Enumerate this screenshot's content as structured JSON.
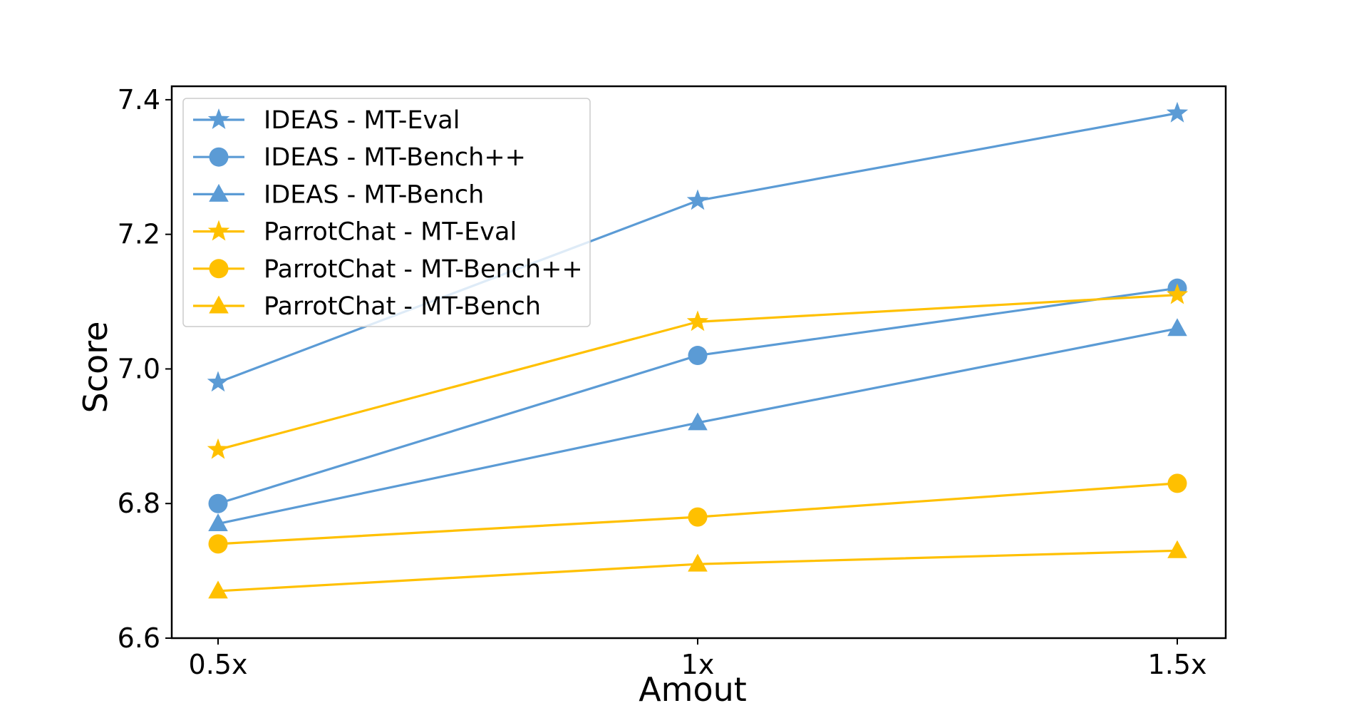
{
  "chart_data": {
    "type": "line",
    "title": "",
    "xlabel": "Amout",
    "ylabel": "Score",
    "categories": [
      "0.5x",
      "1x",
      "1.5x"
    ],
    "ylim": [
      6.6,
      7.42
    ],
    "yticks": [
      6.6,
      6.8,
      7.0,
      7.2,
      7.4
    ],
    "ytick_labels": [
      "6.6",
      "6.8",
      "7.0",
      "7.2",
      "7.4"
    ],
    "grid": false,
    "legend_position": "top-left",
    "series": [
      {
        "name": "IDEAS - MT-Eval",
        "values": [
          6.98,
          7.25,
          7.38
        ],
        "color": "#5B9BD5",
        "marker": "star"
      },
      {
        "name": "IDEAS - MT-Bench++",
        "values": [
          6.8,
          7.02,
          7.12
        ],
        "color": "#5B9BD5",
        "marker": "circle"
      },
      {
        "name": "IDEAS - MT-Bench",
        "values": [
          6.77,
          6.92,
          7.06
        ],
        "color": "#5B9BD5",
        "marker": "triangle"
      },
      {
        "name": "ParrotChat - MT-Eval",
        "values": [
          6.88,
          7.07,
          7.11
        ],
        "color": "#FFC000",
        "marker": "star"
      },
      {
        "name": "ParrotChat - MT-Bench++",
        "values": [
          6.74,
          6.78,
          6.83
        ],
        "color": "#FFC000",
        "marker": "circle"
      },
      {
        "name": "ParrotChat - MT-Bench",
        "values": [
          6.67,
          6.71,
          6.73
        ],
        "color": "#FFC000",
        "marker": "triangle"
      }
    ]
  }
}
